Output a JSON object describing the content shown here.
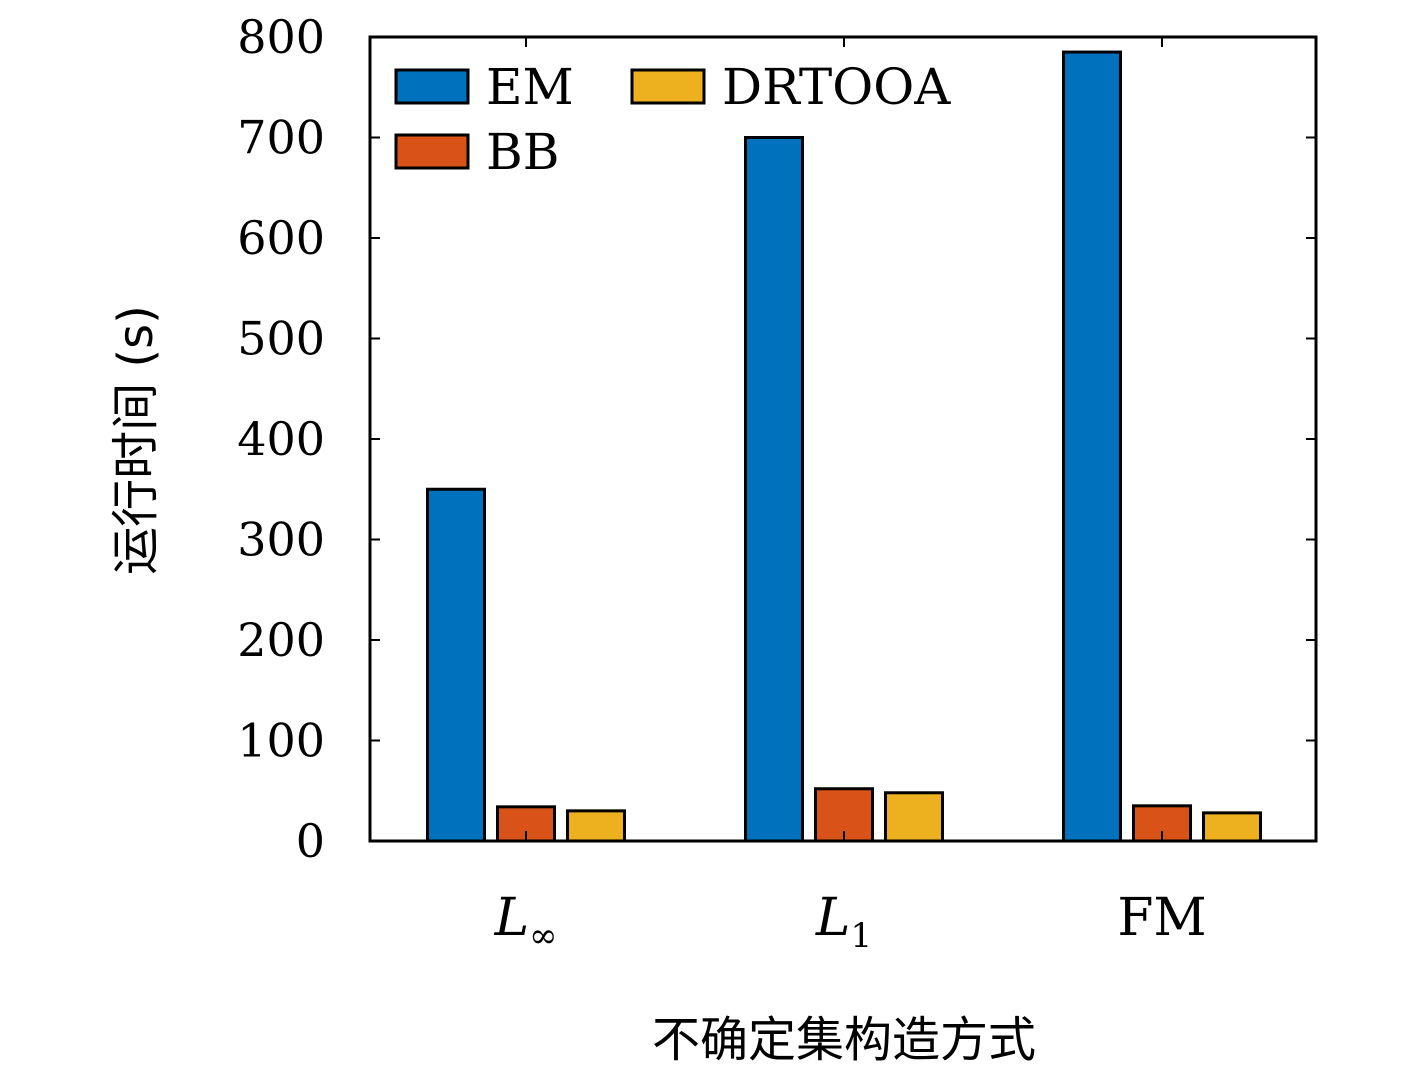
{
  "chart_data": {
    "type": "bar",
    "categories": [
      "L∞",
      "L1",
      "FM"
    ],
    "category_parts": [
      {
        "main": "L",
        "sub": "∞"
      },
      {
        "main": "L",
        "sub": "1"
      },
      {
        "main": "FM",
        "sub": ""
      }
    ],
    "series": [
      {
        "name": "EM",
        "color": "#0072BD",
        "values": [
          350,
          700,
          785
        ]
      },
      {
        "name": "BB",
        "color": "#D95319",
        "values": [
          34,
          52,
          35
        ]
      },
      {
        "name": "DRTOOA",
        "color": "#EDB120",
        "values": [
          30,
          48,
          28
        ]
      }
    ],
    "xlabel": "不确定集构造方式",
    "ylabel": "运行时间 (s)",
    "ylim": [
      0,
      800
    ],
    "yticks": [
      0,
      100,
      200,
      300,
      400,
      500,
      600,
      700,
      800
    ],
    "legend_position": "top-left",
    "grid": false
  }
}
